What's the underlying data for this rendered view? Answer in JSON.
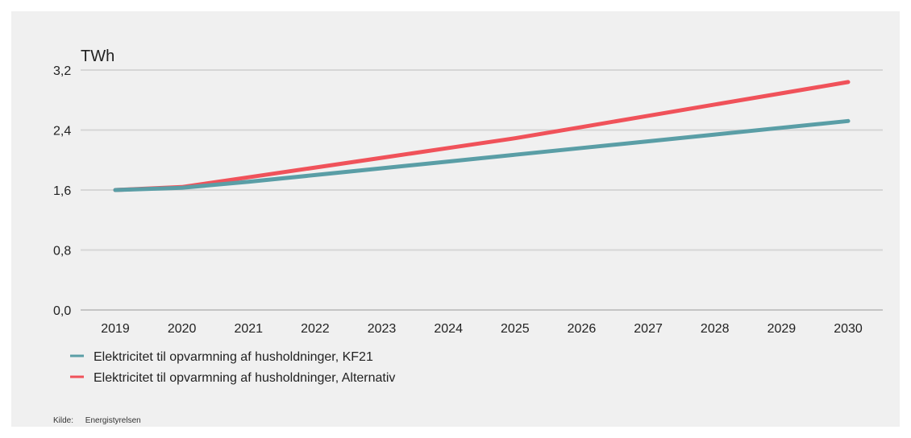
{
  "chart_data": {
    "type": "line",
    "unit_label": "TWh",
    "x": [
      "2019",
      "2020",
      "2021",
      "2022",
      "2023",
      "2024",
      "2025",
      "2026",
      "2027",
      "2028",
      "2029",
      "2030"
    ],
    "ylim": [
      0,
      3.2
    ],
    "yticks": [
      "0,0",
      "0,8",
      "1,6",
      "2,4",
      "3,2"
    ],
    "ytick_values": [
      0,
      0.8,
      1.6,
      2.4,
      3.2
    ],
    "grid": true,
    "legend_position": "bottom-left",
    "series": [
      {
        "name": "Elektricitet til opvarmning af husholdninger, KF21",
        "color": "#5a9ea6",
        "values": [
          1.6,
          1.63,
          1.71,
          1.8,
          1.89,
          1.98,
          2.07,
          2.16,
          2.25,
          2.34,
          2.43,
          2.52
        ]
      },
      {
        "name": "Elektricitet til opvarmning af husholdninger, Alternativ",
        "color": "#f0525a",
        "values": [
          1.6,
          1.64,
          1.77,
          1.9,
          2.03,
          2.16,
          2.29,
          2.44,
          2.59,
          2.74,
          2.89,
          3.04
        ]
      }
    ]
  },
  "source": {
    "label": "Kilde:",
    "value": "Energistyrelsen"
  }
}
